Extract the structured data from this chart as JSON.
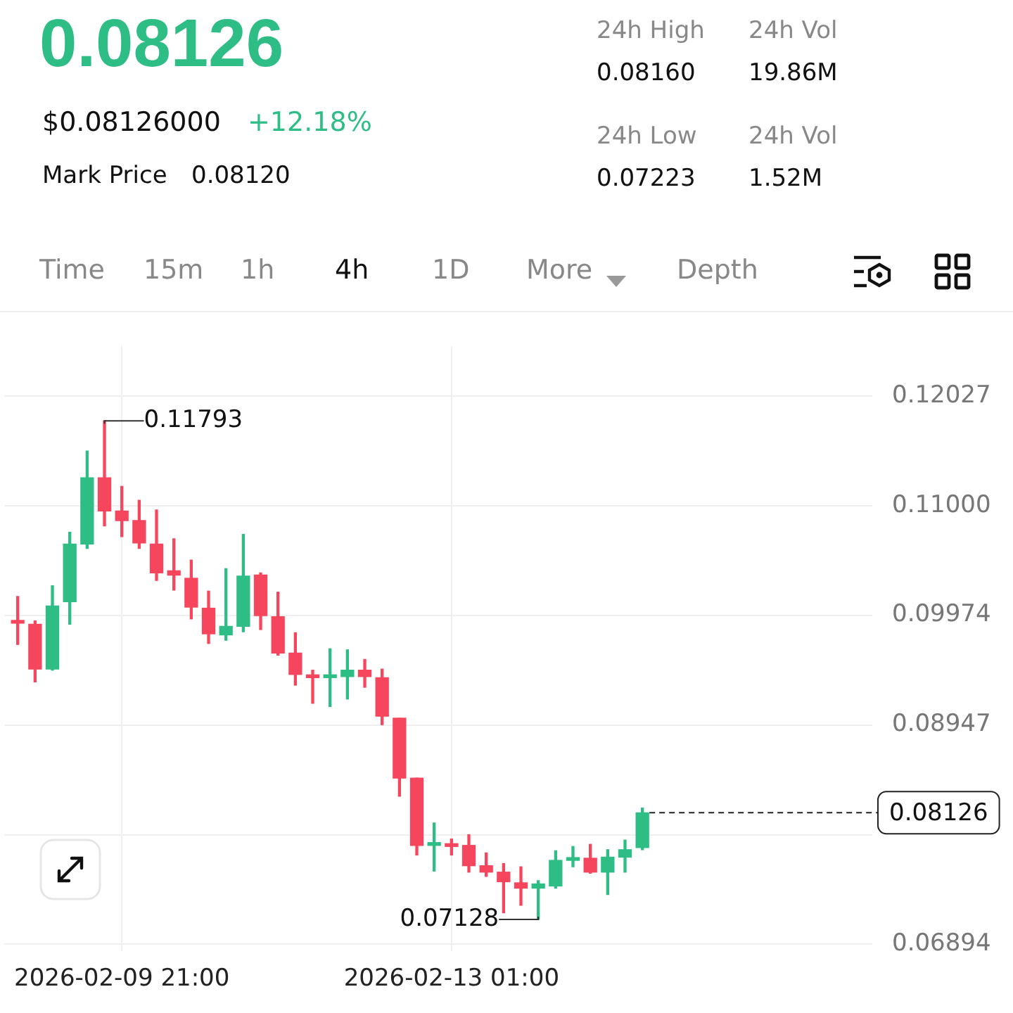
{
  "chart_data": {
    "type": "candlestick",
    "title": "0.08126",
    "subtitle": "$0.08126000",
    "x": [
      "2026-02-08T21:00",
      "2026-02-09T01:00",
      "2026-02-09T05:00",
      "2026-02-09T09:00",
      "2026-02-09T13:00",
      "2026-02-09T17:00",
      "2026-02-09T21:00",
      "2026-02-10T01:00",
      "2026-02-10T05:00",
      "2026-02-10T09:00",
      "2026-02-10T13:00",
      "2026-02-10T17:00",
      "2026-02-10T21:00",
      "2026-02-11T01:00",
      "2026-02-11T05:00",
      "2026-02-11T09:00",
      "2026-02-11T13:00",
      "2026-02-11T17:00",
      "2026-02-11T21:00",
      "2026-02-12T01:00",
      "2026-02-12T05:00",
      "2026-02-12T09:00",
      "2026-02-12T13:00",
      "2026-02-12T17:00",
      "2026-02-12T21:00",
      "2026-02-13T01:00",
      "2026-02-13T05:00",
      "2026-02-13T09:00",
      "2026-02-13T13:00",
      "2026-02-13T17:00",
      "2026-02-13T21:00",
      "2026-02-14T01:00",
      "2026-02-14T05:00",
      "2026-02-14T09:00",
      "2026-02-14T13:00",
      "2026-02-14T17:00",
      "2026-02-14T21:00"
    ],
    "ohlc": [
      [
        0.0992,
        0.1015,
        0.097,
        0.099
      ],
      [
        0.0989,
        0.0992,
        0.0935,
        0.0947
      ],
      [
        0.0947,
        0.1025,
        0.0946,
        0.1006
      ],
      [
        0.101,
        0.1075,
        0.0989,
        0.1064
      ],
      [
        0.1064,
        0.1151,
        0.106,
        0.1126
      ],
      [
        0.1126,
        0.11793,
        0.1081,
        0.1095
      ],
      [
        0.1095,
        0.1118,
        0.1071,
        0.1086
      ],
      [
        0.1086,
        0.1105,
        0.106,
        0.1065
      ],
      [
        0.1064,
        0.1096,
        0.103,
        0.1037
      ],
      [
        0.1039,
        0.1069,
        0.1021,
        0.1035
      ],
      [
        0.1032,
        0.1049,
        0.0994,
        0.1005
      ],
      [
        0.1004,
        0.102,
        0.0971,
        0.098
      ],
      [
        0.0979,
        0.1041,
        0.0974,
        0.0987
      ],
      [
        0.0987,
        0.1073,
        0.0982,
        0.1034
      ],
      [
        0.1035,
        0.1037,
        0.0984,
        0.0997
      ],
      [
        0.0996,
        0.1019,
        0.096,
        0.0962
      ],
      [
        0.0962,
        0.0981,
        0.0932,
        0.0942
      ],
      [
        0.0941,
        0.0946,
        0.0915,
        0.0939
      ],
      [
        0.0939,
        0.0966,
        0.0912,
        0.094
      ],
      [
        0.094,
        0.0965,
        0.0919,
        0.0946
      ],
      [
        0.0946,
        0.0956,
        0.093,
        0.094
      ],
      [
        0.0939,
        0.0947,
        0.0895,
        0.0903
      ],
      [
        0.0901,
        0.0901,
        0.0828,
        0.0845
      ],
      [
        0.0845,
        0.0845,
        0.0773,
        0.0782
      ],
      [
        0.0782,
        0.0803,
        0.0758,
        0.0783
      ],
      [
        0.0783,
        0.0788,
        0.0773,
        0.0781
      ],
      [
        0.0782,
        0.0792,
        0.0757,
        0.0763
      ],
      [
        0.0763,
        0.0775,
        0.0753,
        0.0757
      ],
      [
        0.0757,
        0.0765,
        0.0719,
        0.0748
      ],
      [
        0.0747,
        0.0762,
        0.0726,
        0.0742
      ],
      [
        0.0742,
        0.0749,
        0.07128,
        0.0746
      ],
      [
        0.0744,
        0.0777,
        0.0742,
        0.0768
      ],
      [
        0.0768,
        0.0781,
        0.0762,
        0.077
      ],
      [
        0.077,
        0.0783,
        0.0756,
        0.0757
      ],
      [
        0.0757,
        0.0778,
        0.0736,
        0.0771
      ],
      [
        0.0771,
        0.0787,
        0.0757,
        0.0778
      ],
      [
        0.078,
        0.0817,
        0.0778,
        0.08126
      ]
    ],
    "colors": [
      "#f6465d",
      "#f6465d",
      "#2ebd85",
      "#2ebd85",
      "#2ebd85",
      "#f6465d",
      "#f6465d",
      "#f6465d",
      "#f6465d",
      "#f6465d",
      "#f6465d",
      "#f6465d",
      "#2ebd85",
      "#2ebd85",
      "#f6465d",
      "#f6465d",
      "#f6465d",
      "#f6465d",
      "#2ebd85",
      "#2ebd85",
      "#f6465d",
      "#f6465d",
      "#f6465d",
      "#f6465d",
      "#2ebd85",
      "#f6465d",
      "#f6465d",
      "#f6465d",
      "#f6465d",
      "#f6465d",
      "#2ebd85",
      "#2ebd85",
      "#2ebd85",
      "#f6465d",
      "#2ebd85",
      "#2ebd85",
      "#2ebd85"
    ],
    "xlim": [
      "2026-02-08T18:00",
      "2026-02-17T02:00"
    ],
    "xticks": [
      {
        "value": "2026-02-09T21:00",
        "label": "2026-02-09 21:00"
      },
      {
        "value": "2026-02-13T01:00",
        "label": "2026-02-13 01:00"
      }
    ],
    "ylim": [
      0.06831,
      0.1249
    ],
    "yticks": [
      0.06894,
      {
        "value": 0.0792,
        "label": null
      },
      0.08947,
      0.09974,
      {
        "value": 0.11,
        "label": "0.11000"
      },
      0.12027
    ],
    "grid": true,
    "legend": false,
    "ref_lines": [
      {
        "axis": "y",
        "value": 0.08126,
        "label": "0.08126",
        "line_style": "dashed",
        "color": "#222222"
      }
    ],
    "annotations": [
      "+12.18%",
      "Mark Price",
      "0.08120",
      "24h High",
      "0.08160",
      "24h Vol",
      "19.86M",
      "24h Low",
      "0.07223",
      "24h Vol",
      "1.52M",
      "Time",
      "15m",
      "1h",
      "4h",
      "1D",
      "More",
      "Depth",
      {
        "text": "0.11793",
        "x": "2026-02-09T17:00",
        "y": 0.11793
      },
      {
        "text": "0.07128",
        "x": "2026-02-13T21:00",
        "y": 0.07128
      }
    ]
  }
}
